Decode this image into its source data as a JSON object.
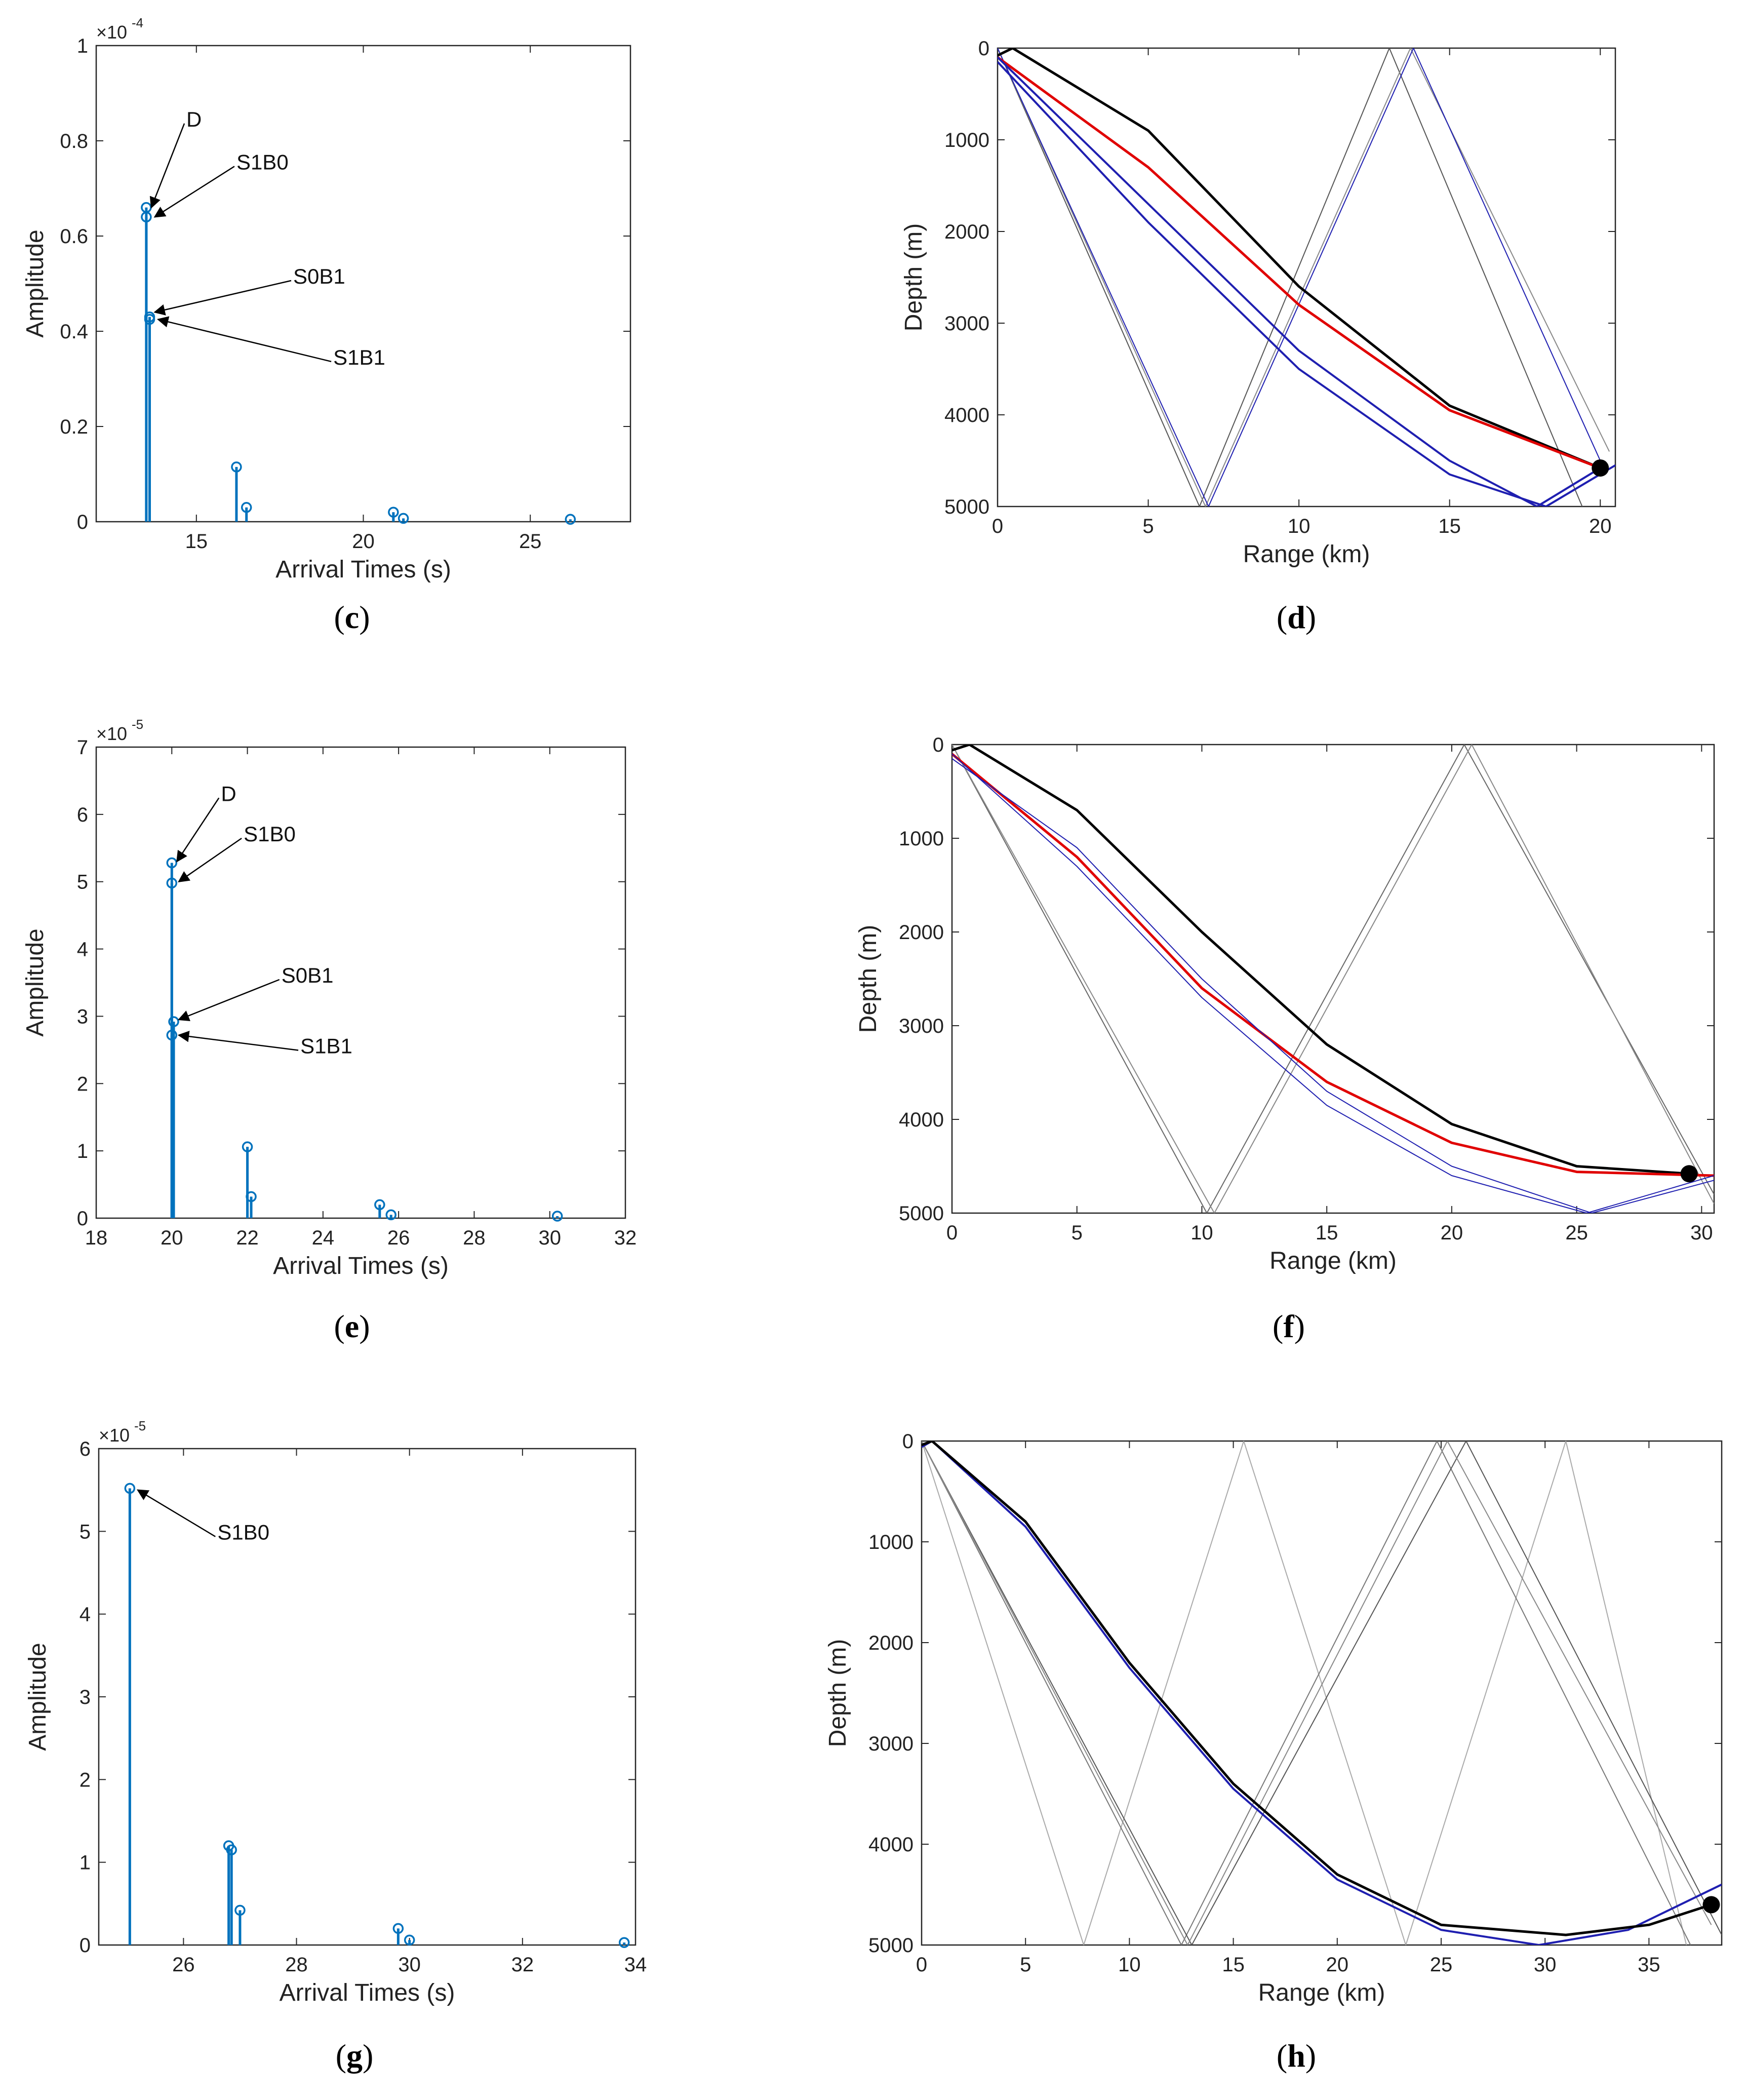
{
  "chart_data": [
    {
      "id": "c",
      "type": "stem",
      "panel_label": "c",
      "xlabel": "Arrival Times (s)",
      "ylabel": "Amplitude",
      "scale_label": "×10",
      "scale_exp": "-4",
      "xlim": [
        12,
        28
      ],
      "ylim": [
        0,
        1
      ],
      "xticks": [
        15,
        20,
        25
      ],
      "yticks": [
        0,
        0.2,
        0.4,
        0.6,
        0.8,
        1
      ],
      "ytick_labels": [
        "0",
        "0.2",
        "0.4",
        "0.6",
        "0.8",
        "1"
      ],
      "stems": [
        {
          "x": 13.5,
          "y": 0.66
        },
        {
          "x": 13.5,
          "y": 0.64
        },
        {
          "x": 13.6,
          "y": 0.43
        },
        {
          "x": 13.6,
          "y": 0.425
        },
        {
          "x": 16.2,
          "y": 0.115
        },
        {
          "x": 16.5,
          "y": 0.03
        },
        {
          "x": 20.9,
          "y": 0.02
        },
        {
          "x": 21.2,
          "y": 0.007
        },
        {
          "x": 26.2,
          "y": 0.005
        }
      ],
      "annotations": [
        {
          "text": "D",
          "at": [
            13.5,
            0.66
          ],
          "label_at": [
            14.7,
            0.83
          ]
        },
        {
          "text": "S1B0",
          "at": [
            13.6,
            0.64
          ],
          "label_at": [
            16.2,
            0.74
          ]
        },
        {
          "text": "S0B1",
          "at": [
            13.6,
            0.44
          ],
          "label_at": [
            17.9,
            0.5
          ]
        },
        {
          "text": "S1B1",
          "at": [
            13.7,
            0.425
          ],
          "label_at": [
            19.1,
            0.33
          ]
        }
      ]
    },
    {
      "id": "d",
      "type": "rays",
      "panel_label": "d",
      "xlabel": "Range (km)",
      "ylabel": "Depth (m)",
      "xlim": [
        0,
        20.5
      ],
      "ylim": [
        0,
        5000
      ],
      "xticks": [
        0,
        5,
        10,
        15,
        20
      ],
      "yticks": [
        0,
        1000,
        2000,
        3000,
        4000,
        5000
      ],
      "receiver": [
        20,
        4580
      ],
      "rays": [
        {
          "color": "#555555",
          "width": 2,
          "points": [
            [
              0,
              0
            ],
            [
              6.7,
              5000
            ],
            [
              13,
              0
            ],
            [
              19.4,
              5000
            ]
          ]
        },
        {
          "color": "#888888",
          "width": 2,
          "points": [
            [
              0,
              0
            ],
            [
              6.9,
              5000
            ],
            [
              13.7,
              0
            ],
            [
              20.3,
              4400
            ]
          ]
        },
        {
          "color": "#1f1fb0",
          "width": 2,
          "points": [
            [
              0,
              0
            ],
            [
              7,
              5000
            ],
            [
              13.8,
              0
            ],
            [
              20,
              4500
            ]
          ]
        },
        {
          "color": "#000000",
          "width": 5,
          "points": [
            [
              0,
              80
            ],
            [
              0.5,
              0
            ],
            [
              5,
              900
            ],
            [
              10,
              2600
            ],
            [
              15,
              3900
            ],
            [
              20,
              4580
            ]
          ]
        },
        {
          "color": "#e00000",
          "width": 5,
          "points": [
            [
              0,
              100
            ],
            [
              5,
              1300
            ],
            [
              10,
              2800
            ],
            [
              15,
              3950
            ],
            [
              20,
              4580
            ]
          ]
        },
        {
          "color": "#1f1fb0",
          "width": 4,
          "points": [
            [
              0,
              100
            ],
            [
              5,
              1700
            ],
            [
              10,
              3300
            ],
            [
              15,
              4500
            ],
            [
              17.9,
              5000
            ],
            [
              20,
              4580
            ]
          ]
        },
        {
          "color": "#1f1fb0",
          "width": 4,
          "points": [
            [
              0,
              150
            ],
            [
              5,
              1900
            ],
            [
              10,
              3500
            ],
            [
              15,
              4650
            ],
            [
              18.2,
              5000
            ],
            [
              20.5,
              4550
            ]
          ]
        }
      ]
    },
    {
      "id": "e",
      "type": "stem",
      "panel_label": "e",
      "xlabel": "Arrival Times (s)",
      "ylabel": "Amplitude",
      "scale_label": "×10",
      "scale_exp": "-5",
      "xlim": [
        18,
        32
      ],
      "ylim": [
        0,
        7
      ],
      "xticks": [
        18,
        20,
        22,
        24,
        26,
        28,
        30,
        32
      ],
      "yticks": [
        0,
        1,
        2,
        3,
        4,
        5,
        6,
        7
      ],
      "ytick_labels": [
        "0",
        "1",
        "2",
        "3",
        "4",
        "5",
        "6",
        "7"
      ],
      "stems": [
        {
          "x": 20,
          "y": 5.28
        },
        {
          "x": 20,
          "y": 4.98
        },
        {
          "x": 20.05,
          "y": 2.92
        },
        {
          "x": 20,
          "y": 2.72
        },
        {
          "x": 22,
          "y": 1.06
        },
        {
          "x": 22.1,
          "y": 0.32
        },
        {
          "x": 25.5,
          "y": 0.2
        },
        {
          "x": 25.8,
          "y": 0.05
        },
        {
          "x": 30.2,
          "y": 0.03
        }
      ],
      "annotations": [
        {
          "text": "D",
          "at": [
            20,
            5.3
          ],
          "label_at": [
            21.3,
            6.2
          ]
        },
        {
          "text": "S1B0",
          "at": [
            20.05,
            5.0
          ],
          "label_at": [
            21.9,
            5.6
          ]
        },
        {
          "text": "S0B1",
          "at": [
            20.05,
            2.95
          ],
          "label_at": [
            22.9,
            3.5
          ]
        },
        {
          "text": "S1B1",
          "at": [
            20.05,
            2.72
          ],
          "label_at": [
            23.4,
            2.45
          ]
        }
      ]
    },
    {
      "id": "f",
      "type": "rays",
      "panel_label": "f",
      "xlabel": "Range (km)",
      "ylabel": "Depth (m)",
      "xlim": [
        0,
        30.5
      ],
      "ylim": [
        0,
        5000
      ],
      "xticks": [
        0,
        5,
        10,
        15,
        20,
        25,
        30
      ],
      "yticks": [
        0,
        1000,
        2000,
        3000,
        4000,
        5000
      ],
      "receiver": [
        29.5,
        4580
      ],
      "rays": [
        {
          "color": "#666666",
          "width": 2,
          "points": [
            [
              0,
              0
            ],
            [
              10.2,
              5000
            ],
            [
              20.5,
              0
            ],
            [
              30.5,
              4800
            ]
          ]
        },
        {
          "color": "#888888",
          "width": 2,
          "points": [
            [
              0,
              0
            ],
            [
              10.5,
              5000
            ],
            [
              20.8,
              0
            ],
            [
              30.5,
              4900
            ]
          ]
        },
        {
          "color": "#000000",
          "width": 5,
          "points": [
            [
              0,
              60
            ],
            [
              0.7,
              0
            ],
            [
              5,
              700
            ],
            [
              10,
              2000
            ],
            [
              15,
              3200
            ],
            [
              20,
              4050
            ],
            [
              25,
              4500
            ],
            [
              29.5,
              4580
            ]
          ]
        },
        {
          "color": "#e00000",
          "width": 5,
          "points": [
            [
              0,
              100
            ],
            [
              5,
              1200
            ],
            [
              10,
              2600
            ],
            [
              15,
              3600
            ],
            [
              20,
              4250
            ],
            [
              25,
              4560
            ],
            [
              30.5,
              4600
            ]
          ]
        },
        {
          "color": "#1f1fb0",
          "width": 2,
          "points": [
            [
              0,
              100
            ],
            [
              5,
              1300
            ],
            [
              10,
              2700
            ],
            [
              15,
              3850
            ],
            [
              20,
              4600
            ],
            [
              25.4,
              5000
            ],
            [
              30.5,
              4600
            ]
          ]
        },
        {
          "color": "#1f1fb0",
          "width": 2,
          "points": [
            [
              0,
              150
            ],
            [
              5,
              1100
            ],
            [
              10,
              2500
            ],
            [
              15,
              3700
            ],
            [
              20,
              4500
            ],
            [
              25.6,
              5000
            ],
            [
              30.5,
              4650
            ]
          ]
        }
      ]
    },
    {
      "id": "g",
      "type": "stem",
      "panel_label": "g",
      "xlabel": "Arrival Times (s)",
      "ylabel": "Amplitude",
      "scale_label": "×10",
      "scale_exp": "-5",
      "xlim": [
        24.5,
        34
      ],
      "ylim": [
        0,
        6
      ],
      "xticks": [
        26,
        28,
        30,
        32,
        34
      ],
      "yticks": [
        0,
        1,
        2,
        3,
        4,
        5,
        6
      ],
      "ytick_labels": [
        "0",
        "1",
        "2",
        "3",
        "4",
        "5",
        "6"
      ],
      "stems": [
        {
          "x": 25.05,
          "y": 5.52
        },
        {
          "x": 26.8,
          "y": 1.2
        },
        {
          "x": 26.85,
          "y": 1.15
        },
        {
          "x": 27,
          "y": 0.42
        },
        {
          "x": 29.8,
          "y": 0.2
        },
        {
          "x": 30,
          "y": 0.06
        },
        {
          "x": 33.8,
          "y": 0.03
        }
      ],
      "annotations": [
        {
          "text": "S1B0",
          "at": [
            25.1,
            5.5
          ],
          "label_at": [
            26.6,
            4.9
          ]
        }
      ]
    },
    {
      "id": "h",
      "type": "rays",
      "panel_label": "h",
      "xlabel": "Range (km)",
      "ylabel": "Depth (m)",
      "xlim": [
        0,
        38.5
      ],
      "ylim": [
        0,
        5000
      ],
      "xticks": [
        0,
        5,
        10,
        15,
        20,
        25,
        30,
        35
      ],
      "yticks": [
        0,
        1000,
        2000,
        3000,
        4000,
        5000
      ],
      "receiver": [
        38,
        4600
      ],
      "rays": [
        {
          "color": "#aaaaaa",
          "width": 2,
          "points": [
            [
              0,
              0
            ],
            [
              7.8,
              5000
            ],
            [
              15.5,
              0
            ],
            [
              23.3,
              5000
            ],
            [
              31,
              0
            ],
            [
              36.8,
              5000
            ]
          ]
        },
        {
          "color": "#777777",
          "width": 2,
          "points": [
            [
              0,
              0
            ],
            [
              12.5,
              5000
            ],
            [
              24.8,
              0
            ],
            [
              37,
              5000
            ]
          ]
        },
        {
          "color": "#555555",
          "width": 2,
          "points": [
            [
              0,
              0
            ],
            [
              13,
              5000
            ],
            [
              26.2,
              0
            ],
            [
              38.5,
              4900
            ]
          ]
        },
        {
          "color": "#888888",
          "width": 2,
          "points": [
            [
              0,
              0
            ],
            [
              12.8,
              5000
            ],
            [
              25.3,
              0
            ],
            [
              38,
              4800
            ]
          ]
        },
        {
          "color": "#1f1fb0",
          "width": 4,
          "points": [
            [
              0,
              60
            ],
            [
              0.5,
              0
            ],
            [
              5,
              850
            ],
            [
              10,
              2250
            ],
            [
              15,
              3450
            ],
            [
              20,
              4350
            ],
            [
              25,
              4850
            ],
            [
              29.7,
              5000
            ],
            [
              34,
              4850
            ],
            [
              38.5,
              4400
            ]
          ]
        },
        {
          "color": "#000000",
          "width": 5,
          "points": [
            [
              0,
              40
            ],
            [
              0.5,
              0
            ],
            [
              5,
              800
            ],
            [
              10,
              2200
            ],
            [
              15,
              3400
            ],
            [
              20,
              4300
            ],
            [
              25,
              4800
            ],
            [
              31,
              4900
            ],
            [
              35,
              4800
            ],
            [
              38,
              4600
            ]
          ]
        }
      ]
    }
  ]
}
